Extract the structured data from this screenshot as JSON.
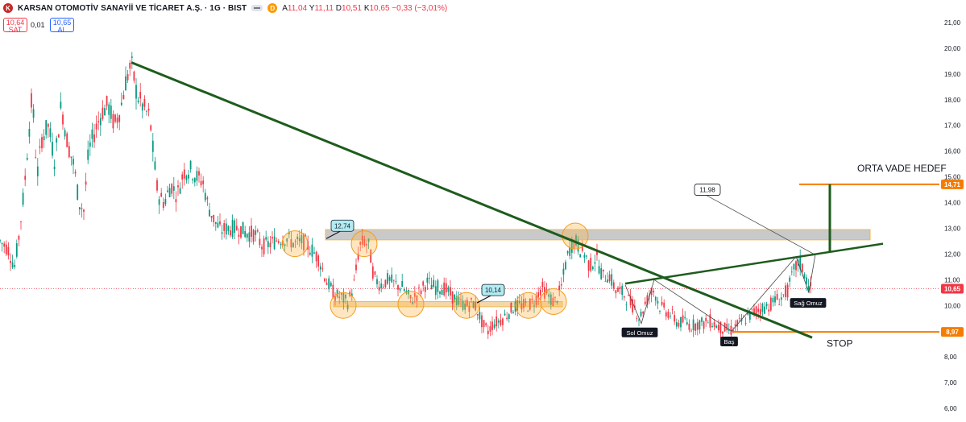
{
  "header": {
    "logo_letter": "K",
    "symbol_title": "KARSAN OTOMOTİV SANAYİİ VE TİCARET A.Ş. · 1G · BIST",
    "d_badge": "D",
    "ohlc": [
      {
        "k": "A",
        "v": "11,04"
      },
      {
        "k": "Y",
        "v": "11,11"
      },
      {
        "k": "D",
        "v": "10,51"
      },
      {
        "k": "K",
        "v": "10,65 −0,33 (−3,01%)"
      }
    ],
    "sell_price": "10,64",
    "sell_label": "SAT",
    "spread": "0,01",
    "buy_price": "10,65",
    "buy_label": "AL"
  },
  "chart_data": {
    "type": "candlestick",
    "y_axis": {
      "min": 6.0,
      "max": 21.0,
      "ticks": [
        "21,00",
        "20,00",
        "19,00",
        "18,00",
        "17,00",
        "16,00",
        "15,00",
        "14,00",
        "13,00",
        "12,00",
        "11,00",
        "10,00",
        "9,00",
        "8,00",
        "7,00",
        "6,00"
      ],
      "tick_values": [
        21,
        20,
        19,
        18,
        17,
        16,
        15,
        14,
        13,
        12,
        11,
        10,
        9,
        8,
        7,
        6
      ],
      "position": "right"
    },
    "price_path": [
      [
        0,
        12.5
      ],
      [
        10,
        12.2
      ],
      [
        18,
        11.5
      ],
      [
        24,
        12.8
      ],
      [
        30,
        14.5
      ],
      [
        36,
        16.8
      ],
      [
        40,
        18.2
      ],
      [
        46,
        15.0
      ],
      [
        52,
        16.5
      ],
      [
        60,
        17.0
      ],
      [
        68,
        15.6
      ],
      [
        76,
        17.8
      ],
      [
        84,
        16.3
      ],
      [
        92,
        15.4
      ],
      [
        98,
        14.0
      ],
      [
        104,
        13.7
      ],
      [
        110,
        16.0
      ],
      [
        118,
        16.8
      ],
      [
        126,
        17.5
      ],
      [
        134,
        17.8
      ],
      [
        142,
        17.0
      ],
      [
        150,
        17.7
      ],
      [
        156,
        18.7
      ],
      [
        163,
        19.4
      ],
      [
        170,
        18.2
      ],
      [
        178,
        17.7
      ],
      [
        186,
        17.3
      ],
      [
        190,
        16.0
      ],
      [
        196,
        14.3
      ],
      [
        204,
        14.0
      ],
      [
        212,
        14.7
      ],
      [
        220,
        14.3
      ],
      [
        228,
        15.2
      ],
      [
        236,
        15.3
      ],
      [
        244,
        15.0
      ],
      [
        252,
        14.8
      ],
      [
        258,
        13.9
      ],
      [
        266,
        13.3
      ],
      [
        274,
        12.9
      ],
      [
        282,
        13.0
      ],
      [
        290,
        13.0
      ],
      [
        298,
        13.0
      ],
      [
        306,
        12.8
      ],
      [
        316,
        12.8
      ],
      [
        326,
        12.3
      ],
      [
        336,
        12.4
      ],
      [
        346,
        12.6
      ],
      [
        356,
        12.6
      ],
      [
        366,
        12.4
      ],
      [
        376,
        12.5
      ],
      [
        386,
        12.2
      ],
      [
        396,
        11.8
      ],
      [
        406,
        10.9
      ],
      [
        416,
        10.4
      ],
      [
        424,
        10.3
      ],
      [
        432,
        10.1
      ],
      [
        440,
        10.9
      ],
      [
        446,
        12.3
      ],
      [
        452,
        12.5
      ],
      [
        458,
        12.3
      ],
      [
        464,
        11.1
      ],
      [
        472,
        10.8
      ],
      [
        482,
        11.0
      ],
      [
        492,
        10.8
      ],
      [
        500,
        10.7
      ],
      [
        510,
        10.2
      ],
      [
        520,
        10.5
      ],
      [
        530,
        10.9
      ],
      [
        540,
        10.7
      ],
      [
        550,
        10.7
      ],
      [
        560,
        10.4
      ],
      [
        570,
        10.1
      ],
      [
        580,
        10.0
      ],
      [
        588,
        10.1
      ],
      [
        594,
        9.7
      ],
      [
        600,
        9.2
      ],
      [
        606,
        9.0
      ],
      [
        612,
        9.3
      ],
      [
        620,
        9.4
      ],
      [
        628,
        9.6
      ],
      [
        636,
        9.9
      ],
      [
        646,
        10.0
      ],
      [
        656,
        10.0
      ],
      [
        664,
        10.2
      ],
      [
        672,
        10.7
      ],
      [
        680,
        10.4
      ],
      [
        688,
        10.1
      ],
      [
        696,
        10.6
      ],
      [
        702,
        11.6
      ],
      [
        708,
        12.3
      ],
      [
        714,
        12.5
      ],
      [
        720,
        12.2
      ],
      [
        726,
        12.0
      ],
      [
        732,
        11.5
      ],
      [
        740,
        11.9
      ],
      [
        748,
        11.1
      ],
      [
        756,
        11.2
      ],
      [
        764,
        10.6
      ],
      [
        772,
        10.5
      ],
      [
        780,
        10.2
      ],
      [
        788,
        9.9
      ],
      [
        794,
        9.5
      ],
      [
        800,
        10.0
      ],
      [
        806,
        10.4
      ],
      [
        812,
        10.6
      ],
      [
        818,
        10.0
      ],
      [
        826,
        9.8
      ],
      [
        834,
        9.6
      ],
      [
        842,
        9.3
      ],
      [
        850,
        9.4
      ],
      [
        858,
        9.2
      ],
      [
        866,
        9.3
      ],
      [
        874,
        9.3
      ],
      [
        882,
        9.4
      ],
      [
        890,
        9.2
      ],
      [
        898,
        9.1
      ],
      [
        906,
        9.0
      ],
      [
        914,
        9.2
      ],
      [
        922,
        9.4
      ],
      [
        930,
        9.6
      ],
      [
        938,
        9.8
      ],
      [
        946,
        9.9
      ],
      [
        954,
        10.0
      ],
      [
        962,
        10.2
      ],
      [
        970,
        10.3
      ],
      [
        978,
        10.6
      ],
      [
        986,
        11.4
      ],
      [
        992,
        11.7
      ],
      [
        998,
        11.3
      ],
      [
        1004,
        10.7
      ],
      [
        1008,
        10.65
      ]
    ],
    "last_price": {
      "value": 10.65,
      "label": "10,65",
      "color": "#f23645"
    },
    "levels": [
      {
        "name": "target",
        "value": 14.71,
        "label": "14,71",
        "color": "#f57c00"
      },
      {
        "name": "stop",
        "value": 8.97,
        "label": "8,97",
        "color": "#f57c00"
      }
    ],
    "resistance_zone": {
      "low": 12.55,
      "high": 12.95,
      "color": "#c9c9c9"
    },
    "support_zone": {
      "low": 9.95,
      "high": 10.15,
      "color": "#f3d7a8"
    },
    "downtrend_line": {
      "from": [
        163,
        19.45
      ],
      "to": [
        1008,
        8.75
      ],
      "color": "#1e5c1e"
    },
    "neckline": {
      "from": [
        776,
        10.85
      ],
      "to": [
        1096,
        12.4
      ],
      "color": "#1e5c1e"
    },
    "target_arrow": {
      "x": 1030,
      "from": 12.1,
      "to": 14.71,
      "color": "#1e5c1e"
    },
    "hs_pattern": [
      [
        776,
        10.8
      ],
      [
        796,
        9.3
      ],
      [
        812,
        11.0
      ],
      [
        908,
        9.0
      ],
      [
        988,
        11.9
      ],
      [
        1004,
        10.5
      ],
      [
        1012,
        12.0
      ]
    ],
    "circles": [
      [
        366,
        12.4
      ],
      [
        452,
        12.4
      ],
      [
        426,
        10.0
      ],
      [
        510,
        10.05
      ],
      [
        579,
        10.0
      ],
      [
        656,
        10.0
      ],
      [
        687,
        10.15
      ],
      [
        714,
        12.7
      ]
    ],
    "callouts": [
      {
        "text": "12,74",
        "at": [
          424,
          13.1
        ],
        "tail": [
          405,
          12.6
        ]
      },
      {
        "text": "10,14",
        "at": [
          611,
          10.6
        ],
        "tail": [
          592,
          10.1
        ]
      },
      {
        "text": "11,98",
        "at": [
          875,
          14.5
        ],
        "tail": [
          1010,
          12.0
        ]
      }
    ],
    "annotations": [
      {
        "text": "Sol Omuz",
        "at": [
          794,
          8.95
        ]
      },
      {
        "text": "Baş",
        "at": [
          905,
          8.6
        ]
      },
      {
        "text": "Sağ Omuz",
        "at": [
          1003,
          10.1
        ]
      },
      {
        "text": "ORTA VADE HEDEF",
        "at": [
          1064,
          15.2
        ],
        "big": true
      },
      {
        "text": "STOP",
        "at": [
          1026,
          8.4
        ],
        "big": true
      }
    ]
  }
}
